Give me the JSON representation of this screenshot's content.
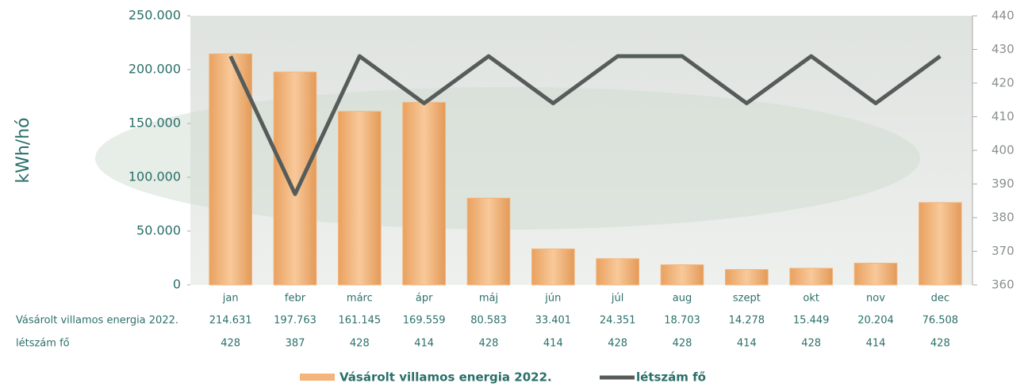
{
  "chart_data": {
    "type": "bar-line",
    "ylabel": "kWh/hó",
    "categories": [
      "jan",
      "febr",
      "márc",
      "ápr",
      "máj",
      "jún",
      "júl",
      "aug",
      "szept",
      "okt",
      "nov",
      "dec"
    ],
    "series": [
      {
        "name": "Vásárolt villamos energia 2022.",
        "type": "bar",
        "color": "#f4b47a",
        "values": [
          214631,
          197763,
          161145,
          169559,
          80583,
          33401,
          24351,
          18703,
          14278,
          15449,
          20204,
          76508
        ],
        "value_labels": [
          "214.631",
          "197.763",
          "161.145",
          "169.559",
          "80.583",
          "33.401",
          "24.351",
          "18.703",
          "14.278",
          "15.449",
          "20.204",
          "76.508"
        ]
      },
      {
        "name": "létszám fő",
        "type": "line",
        "axis": "y2",
        "color": "#555c5a",
        "values": [
          428,
          387,
          428,
          414,
          428,
          414,
          428,
          428,
          414,
          428,
          414,
          428
        ]
      }
    ],
    "ylim": [
      0,
      250000
    ],
    "yticks": [
      0,
      {
        "value": 50000,
        "label": "50.000"
      },
      {
        "value": 100000,
        "label": "100.000"
      },
      {
        "value": 150000,
        "label": "150.000"
      },
      {
        "value": 200000,
        "label": "200.000"
      },
      {
        "value": 250000,
        "label": "250.000"
      }
    ],
    "y2lim": [
      360,
      440
    ],
    "y2ticks": [
      360,
      370,
      380,
      390,
      400,
      410,
      420,
      430,
      440
    ],
    "legend": "bottom"
  }
}
